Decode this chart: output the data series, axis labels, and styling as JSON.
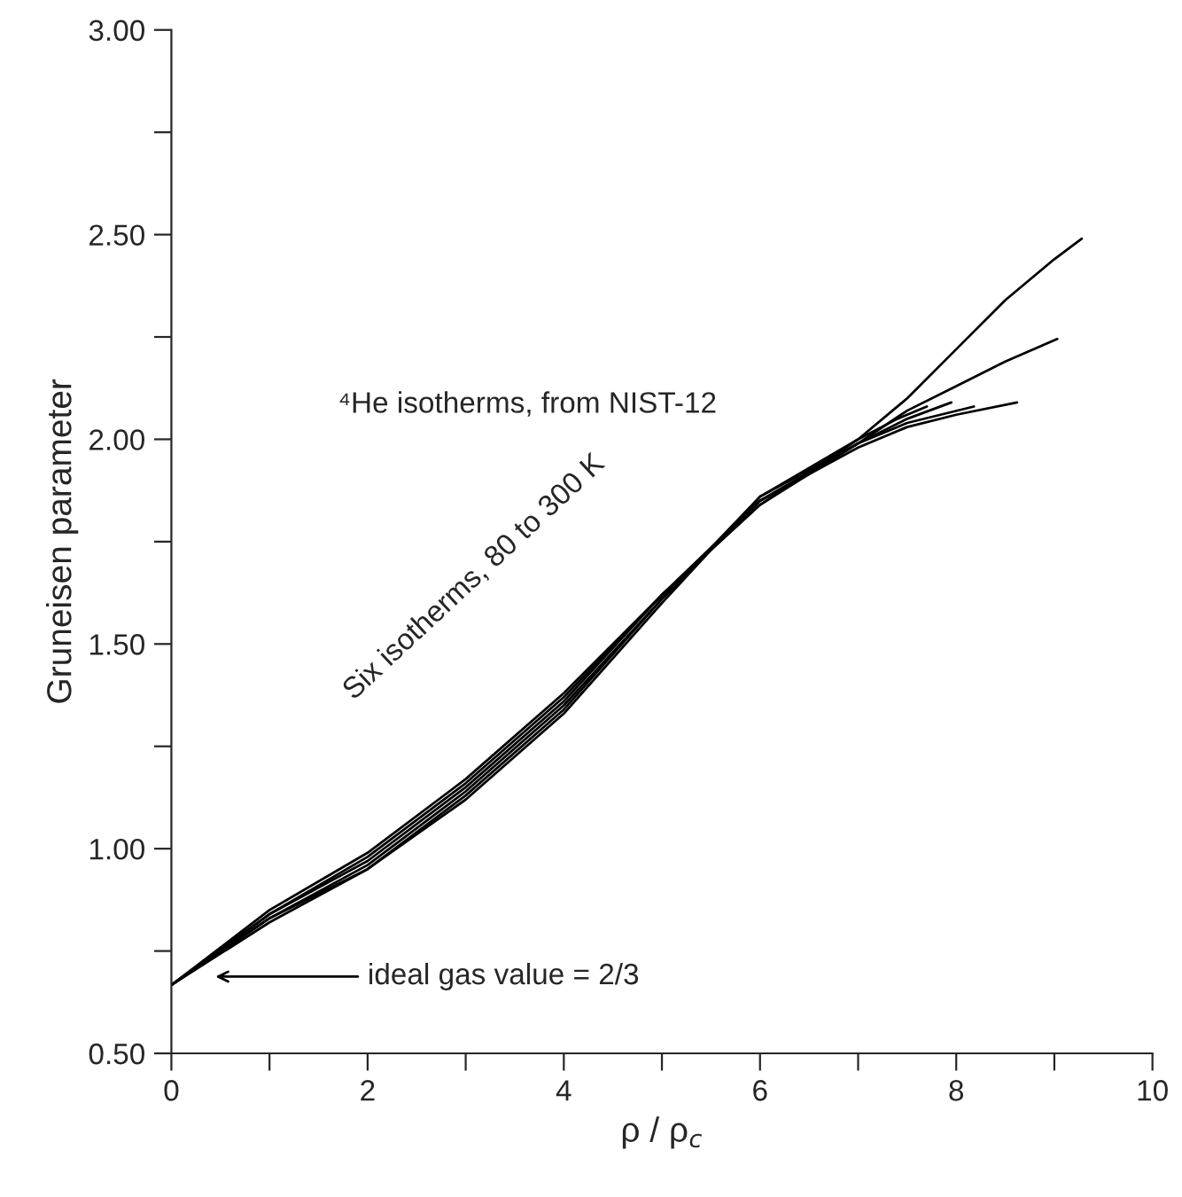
{
  "chart_data": {
    "type": "line",
    "xlabel": "ρ / ρ$_{c}$",
    "ylabel": "Gruneisen parameter",
    "xlim": [
      0,
      10
    ],
    "ylim": [
      0.5,
      3.0
    ],
    "xticks": [
      0,
      {
        "value": 1,
        "label": null
      },
      2,
      {
        "value": 3,
        "label": null
      },
      4,
      {
        "value": 5,
        "label": null
      },
      6,
      {
        "value": 7,
        "label": null
      },
      8,
      {
        "value": 9,
        "label": null
      },
      10
    ],
    "yticks": [
      {
        "value": 0.5,
        "label": "0.50"
      },
      {
        "value": 0.75,
        "label": null
      },
      {
        "value": 1.0,
        "label": "1.00"
      },
      {
        "value": 1.25,
        "label": null
      },
      {
        "value": 1.5,
        "label": "1.50"
      },
      {
        "value": 1.75,
        "label": null
      },
      {
        "value": 2.0,
        "label": "2.00"
      },
      {
        "value": 2.25,
        "label": null
      },
      {
        "value": 2.5,
        "label": "2.50"
      },
      {
        "value": 2.75,
        "label": null
      },
      {
        "value": 3.0,
        "label": "3.00"
      }
    ],
    "grid": false,
    "marker": "none",
    "line_style": "solid",
    "series": [
      {
        "color": "#000000",
        "x": [
          0,
          1,
          2,
          3,
          4,
          5,
          6,
          7,
          7.5,
          8,
          8.5,
          9.0,
          9.28
        ],
        "values": [
          0.667,
          0.85,
          0.99,
          1.17,
          1.38,
          1.62,
          1.84,
          2.0,
          2.1,
          2.22,
          2.34,
          2.44,
          2.49
        ]
      },
      {
        "color": "#000000",
        "x": [
          0,
          1,
          2,
          3,
          4,
          5,
          6,
          7,
          7.5,
          8,
          8.5,
          9.03
        ],
        "values": [
          0.667,
          0.84,
          0.98,
          1.16,
          1.37,
          1.62,
          1.84,
          1.99,
          2.07,
          2.13,
          2.19,
          2.245
        ]
      },
      {
        "color": "#000000",
        "x": [
          0,
          1,
          2,
          3,
          4,
          5,
          6,
          7,
          7.5,
          8,
          8.62
        ],
        "values": [
          0.667,
          0.84,
          0.97,
          1.15,
          1.36,
          1.62,
          1.85,
          1.98,
          2.03,
          2.06,
          2.09
        ]
      },
      {
        "color": "#000000",
        "x": [
          0,
          1,
          2,
          3,
          4,
          5,
          6,
          7,
          7.5,
          8.18
        ],
        "values": [
          0.667,
          0.83,
          0.96,
          1.14,
          1.35,
          1.61,
          1.85,
          1.99,
          2.04,
          2.08
        ]
      },
      {
        "color": "#000000",
        "x": [
          0,
          1,
          2,
          3,
          4,
          5,
          6,
          7,
          7.5,
          7.95
        ],
        "values": [
          0.667,
          0.83,
          0.95,
          1.13,
          1.34,
          1.61,
          1.86,
          1.99,
          2.05,
          2.09
        ]
      },
      {
        "color": "#000000",
        "x": [
          0,
          1,
          2,
          3,
          4,
          5,
          6,
          7,
          7.4,
          7.7
        ],
        "values": [
          0.667,
          0.82,
          0.95,
          1.12,
          1.33,
          1.6,
          1.86,
          2.0,
          2.05,
          2.08
        ]
      }
    ],
    "annotations": [
      "⁴He isotherms, from NIST-12",
      "Six isotherms, 80 to 300 K",
      "ideal gas value = 2/3"
    ]
  }
}
